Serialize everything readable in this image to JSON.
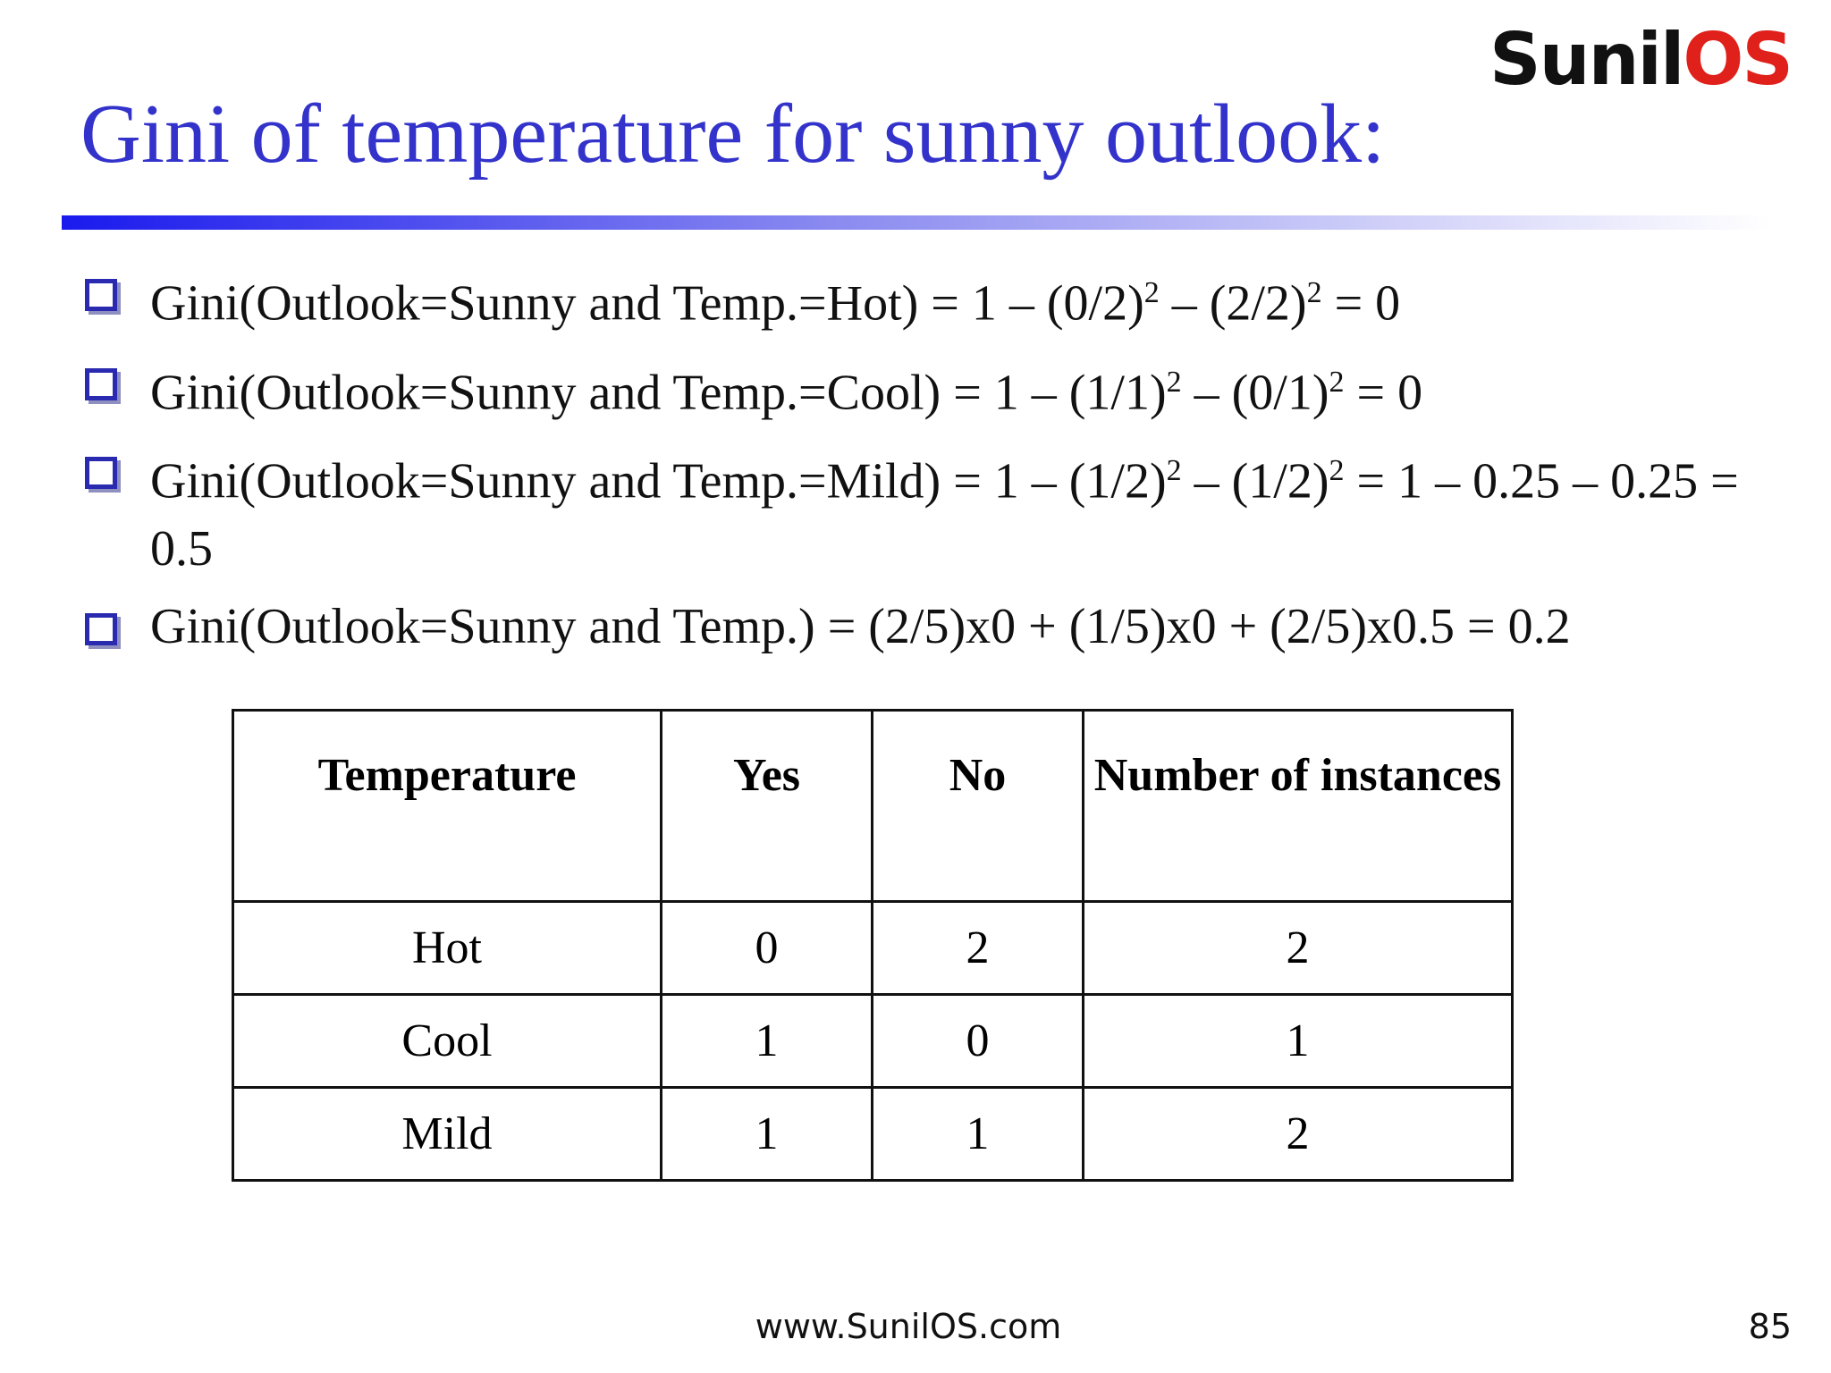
{
  "logo": [
    "Sunil",
    "OS"
  ],
  "title": "Gini of temperature for sunny outlook:",
  "bullets": [
    [
      "Gini(Outlook=Sunny and Temp.=Hot) = 1 – (0/2)",
      "2",
      " – (2/2)",
      "2",
      " = 0"
    ],
    [
      "Gini(Outlook=Sunny and Temp.=Cool) = 1 – (1/1)",
      "2",
      " – (0/1)",
      "2",
      " = 0"
    ],
    [
      "Gini(Outlook=Sunny and Temp.=Mild) = 1 – (1/2)",
      "2",
      " – (1/2)",
      "2",
      " = 1 – 0.25 – 0.25 = 0.5"
    ],
    [
      "Gini(Outlook=Sunny and Temp.) = (2/5)x0 + (1/5)x0 + (2/5)x0.5 = 0.2"
    ]
  ],
  "table": {
    "header": [
      "Temperature",
      "Yes",
      "No",
      "Number of instances"
    ],
    "rows": [
      [
        "Hot",
        0,
        2,
        2
      ],
      [
        "Cool",
        1,
        0,
        1
      ],
      [
        "Mild",
        1,
        1,
        2
      ]
    ]
  },
  "footer": {
    "url": "www.SunilOS.com",
    "page": 85
  }
}
